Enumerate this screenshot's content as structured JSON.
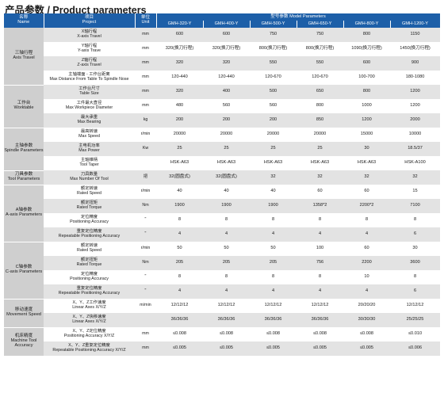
{
  "title": "产品参数 / Product parameters",
  "header": {
    "name_cn": "名称",
    "name_en": "Name",
    "project_cn": "项目",
    "project_en": "Project",
    "unit_cn": "单位",
    "unit_en": "Unit",
    "model_params": "型号参数  Model Parameters",
    "models": [
      "GMH-320-Y",
      "GMH-400-Y",
      "GMH-500-Y",
      "GMH-650-Y",
      "GMH-800-Y",
      "GMH-1200-Y"
    ]
  },
  "groups": [
    {
      "cn": "三轴行程",
      "en": "Axis Travel",
      "rows": [
        {
          "cn": "X轴行程",
          "en": "X-axis Travel",
          "unit": "mm",
          "values": [
            "600",
            "600",
            "750",
            "750",
            "800",
            "1150"
          ]
        },
        {
          "cn": "Y轴行程",
          "en": "Y-axis Trave",
          "unit": "mm",
          "values": [
            "320(换刀行程)",
            "320(换刀行程)",
            "800(换刀行程)",
            "800(换刀行程)",
            "1090(换刀行程)",
            "1450(换刀行程)"
          ]
        },
        {
          "cn": "Z轴行程",
          "en": "Z-axis Travel",
          "unit": "mm",
          "values": [
            "320",
            "320",
            "550",
            "550",
            "600",
            "900"
          ]
        },
        {
          "cn": "主轴端面 - 工作台距离",
          "en": "Max Distance From Table To Spindle Nose",
          "unit": "mm",
          "values": [
            "120-440",
            "120-440",
            "120-670",
            "120-670",
            "100-700",
            "180-1080"
          ]
        }
      ]
    },
    {
      "cn": "工作台",
      "en": "Worktable",
      "rows": [
        {
          "cn": "工作台尺寸",
          "en": "Table Size",
          "unit": "mm",
          "values": [
            "320",
            "400",
            "500",
            "650",
            "800",
            "1200"
          ]
        },
        {
          "cn": "工件最大直径",
          "en": "Max Workpiece Diameter",
          "unit": "mm",
          "values": [
            "480",
            "560",
            "560",
            "800",
            "1000",
            "1200"
          ]
        },
        {
          "cn": "最大承重",
          "en": "Max Bearing",
          "unit": "kg",
          "values": [
            "200",
            "200",
            "200",
            "850",
            "1200",
            "2000"
          ]
        }
      ]
    },
    {
      "cn": "主轴参数",
      "en": "Spindle Parameters",
      "rows": [
        {
          "cn": "最高转速",
          "en": "Max Speed",
          "unit": "r/min",
          "values": [
            "20000",
            "20000",
            "20000",
            "20000",
            "15000",
            "10000"
          ]
        },
        {
          "cn": "主电机功率",
          "en": "Max Power",
          "unit": "Kw",
          "values": [
            "25",
            "25",
            "25",
            "25",
            "30",
            "18.5/37"
          ]
        },
        {
          "cn": "主轴锥柄",
          "en": "Tool Taper",
          "unit": "",
          "values": [
            "HSK-A63",
            "HSK-A63",
            "HSK-A63",
            "HSK-A63",
            "HSK-A63",
            "HSK-A100"
          ]
        }
      ]
    },
    {
      "cn": "刀具参数",
      "en": "Tool Parameters",
      "rows": [
        {
          "cn": "刀具数量",
          "en": "Max Number Of Tool",
          "unit": "把",
          "values": [
            "32(圆盘式)",
            "32(圆盘式)",
            "32",
            "32",
            "32",
            "32"
          ]
        }
      ]
    },
    {
      "cn": "A轴参数",
      "en": "A-axis Parameters",
      "rows": [
        {
          "cn": "额定转速",
          "en": "Rated Speed",
          "unit": "r/min",
          "values": [
            "40",
            "40",
            "40",
            "60",
            "60",
            "15"
          ]
        },
        {
          "cn": "额定扭矩",
          "en": "Rated Torque",
          "unit": "Nm",
          "values": [
            "1900",
            "1900",
            "1900",
            "1358*2",
            "2200*2",
            "7100"
          ]
        },
        {
          "cn": "定位精度",
          "en": "Positioning Accuracy",
          "unit": "\"",
          "values": [
            "8",
            "8",
            "8",
            "8",
            "8",
            "8"
          ]
        },
        {
          "cn": "重复定位精度",
          "en": "Repeatable Positioning Accuracy",
          "unit": "\"",
          "values": [
            "4",
            "4",
            "4",
            "4",
            "4",
            "6"
          ]
        }
      ]
    },
    {
      "cn": "C轴参数",
      "en": "C-axis Parameters",
      "rows": [
        {
          "cn": "额定转速",
          "en": "Rated Speed",
          "unit": "r/min",
          "values": [
            "50",
            "50",
            "50",
            "100",
            "60",
            "30"
          ]
        },
        {
          "cn": "额定扭矩",
          "en": "Rated Torque",
          "unit": "Nm",
          "values": [
            "205",
            "205",
            "205",
            "756",
            "2200",
            "3600"
          ]
        },
        {
          "cn": "定位精度",
          "en": "Positioning Accuracy",
          "unit": "\"",
          "values": [
            "8",
            "8",
            "8",
            "8",
            "10",
            "8"
          ]
        },
        {
          "cn": "重复定位精度",
          "en": "Repeatable Positioning Accuracy",
          "unit": "\"",
          "values": [
            "4",
            "4",
            "4",
            "4",
            "4",
            "6"
          ]
        }
      ]
    },
    {
      "cn": "移动速度",
      "en": "Movement Speed",
      "rows": [
        {
          "cn": "X、Y、Z工作速度",
          "en": "Linear Axes X/Y/Z",
          "unit": "m/min",
          "values": [
            "12/12/12",
            "12/12/12",
            "12/12/12",
            "12/12/12",
            "20/20/20",
            "12/12/12"
          ]
        },
        {
          "cn": "X、Y、Z快移速度",
          "en": "Linear Axes X/Y/Z",
          "unit": "",
          "values": [
            "36/36/36",
            "36/36/36",
            "36/36/36",
            "36/36/36",
            "30/30/30",
            "25/25/25"
          ]
        }
      ]
    },
    {
      "cn": "机床精度",
      "en": "Machine Tool Accuracy",
      "rows": [
        {
          "cn": "X、Y、Z定位精度",
          "en": "Positioning Accuracy X/Y/Z",
          "unit": "mm",
          "values": [
            "≤0.008",
            "≤0.008",
            "≤0.008",
            "≤0.008",
            "≤0.008",
            "≤0.010"
          ]
        },
        {
          "cn": "X、Y、Z重复定位精度",
          "en": "Repeatable Positioning Accuracy X/Y/Z",
          "unit": "mm",
          "values": [
            "≤0.005",
            "≤0.005",
            "≤0.005",
            "≤0.005",
            "≤0.005",
            "≤0.006"
          ]
        }
      ]
    }
  ]
}
